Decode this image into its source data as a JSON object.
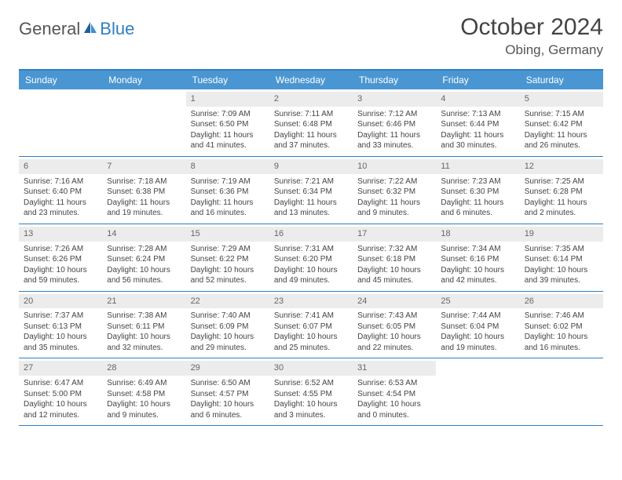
{
  "logo": {
    "text1": "General",
    "text2": "Blue"
  },
  "title": {
    "month": "October 2024",
    "location": "Obing, Germany"
  },
  "colors": {
    "header_bg": "#4a96d2",
    "border": "#2f7fc1",
    "daynum_bg": "#ececec",
    "text": "#444444",
    "logo_blue": "#2f7fc1"
  },
  "weekdays": [
    "Sunday",
    "Monday",
    "Tuesday",
    "Wednesday",
    "Thursday",
    "Friday",
    "Saturday"
  ],
  "weeks": [
    [
      null,
      null,
      {
        "n": "1",
        "sr": "7:09 AM",
        "ss": "6:50 PM",
        "dl": "11 hours and 41 minutes."
      },
      {
        "n": "2",
        "sr": "7:11 AM",
        "ss": "6:48 PM",
        "dl": "11 hours and 37 minutes."
      },
      {
        "n": "3",
        "sr": "7:12 AM",
        "ss": "6:46 PM",
        "dl": "11 hours and 33 minutes."
      },
      {
        "n": "4",
        "sr": "7:13 AM",
        "ss": "6:44 PM",
        "dl": "11 hours and 30 minutes."
      },
      {
        "n": "5",
        "sr": "7:15 AM",
        "ss": "6:42 PM",
        "dl": "11 hours and 26 minutes."
      }
    ],
    [
      {
        "n": "6",
        "sr": "7:16 AM",
        "ss": "6:40 PM",
        "dl": "11 hours and 23 minutes."
      },
      {
        "n": "7",
        "sr": "7:18 AM",
        "ss": "6:38 PM",
        "dl": "11 hours and 19 minutes."
      },
      {
        "n": "8",
        "sr": "7:19 AM",
        "ss": "6:36 PM",
        "dl": "11 hours and 16 minutes."
      },
      {
        "n": "9",
        "sr": "7:21 AM",
        "ss": "6:34 PM",
        "dl": "11 hours and 13 minutes."
      },
      {
        "n": "10",
        "sr": "7:22 AM",
        "ss": "6:32 PM",
        "dl": "11 hours and 9 minutes."
      },
      {
        "n": "11",
        "sr": "7:23 AM",
        "ss": "6:30 PM",
        "dl": "11 hours and 6 minutes."
      },
      {
        "n": "12",
        "sr": "7:25 AM",
        "ss": "6:28 PM",
        "dl": "11 hours and 2 minutes."
      }
    ],
    [
      {
        "n": "13",
        "sr": "7:26 AM",
        "ss": "6:26 PM",
        "dl": "10 hours and 59 minutes."
      },
      {
        "n": "14",
        "sr": "7:28 AM",
        "ss": "6:24 PM",
        "dl": "10 hours and 56 minutes."
      },
      {
        "n": "15",
        "sr": "7:29 AM",
        "ss": "6:22 PM",
        "dl": "10 hours and 52 minutes."
      },
      {
        "n": "16",
        "sr": "7:31 AM",
        "ss": "6:20 PM",
        "dl": "10 hours and 49 minutes."
      },
      {
        "n": "17",
        "sr": "7:32 AM",
        "ss": "6:18 PM",
        "dl": "10 hours and 45 minutes."
      },
      {
        "n": "18",
        "sr": "7:34 AM",
        "ss": "6:16 PM",
        "dl": "10 hours and 42 minutes."
      },
      {
        "n": "19",
        "sr": "7:35 AM",
        "ss": "6:14 PM",
        "dl": "10 hours and 39 minutes."
      }
    ],
    [
      {
        "n": "20",
        "sr": "7:37 AM",
        "ss": "6:13 PM",
        "dl": "10 hours and 35 minutes."
      },
      {
        "n": "21",
        "sr": "7:38 AM",
        "ss": "6:11 PM",
        "dl": "10 hours and 32 minutes."
      },
      {
        "n": "22",
        "sr": "7:40 AM",
        "ss": "6:09 PM",
        "dl": "10 hours and 29 minutes."
      },
      {
        "n": "23",
        "sr": "7:41 AM",
        "ss": "6:07 PM",
        "dl": "10 hours and 25 minutes."
      },
      {
        "n": "24",
        "sr": "7:43 AM",
        "ss": "6:05 PM",
        "dl": "10 hours and 22 minutes."
      },
      {
        "n": "25",
        "sr": "7:44 AM",
        "ss": "6:04 PM",
        "dl": "10 hours and 19 minutes."
      },
      {
        "n": "26",
        "sr": "7:46 AM",
        "ss": "6:02 PM",
        "dl": "10 hours and 16 minutes."
      }
    ],
    [
      {
        "n": "27",
        "sr": "6:47 AM",
        "ss": "5:00 PM",
        "dl": "10 hours and 12 minutes."
      },
      {
        "n": "28",
        "sr": "6:49 AM",
        "ss": "4:58 PM",
        "dl": "10 hours and 9 minutes."
      },
      {
        "n": "29",
        "sr": "6:50 AM",
        "ss": "4:57 PM",
        "dl": "10 hours and 6 minutes."
      },
      {
        "n": "30",
        "sr": "6:52 AM",
        "ss": "4:55 PM",
        "dl": "10 hours and 3 minutes."
      },
      {
        "n": "31",
        "sr": "6:53 AM",
        "ss": "4:54 PM",
        "dl": "10 hours and 0 minutes."
      },
      null,
      null
    ]
  ],
  "labels": {
    "sunrise": "Sunrise: ",
    "sunset": "Sunset: ",
    "daylight": "Daylight: "
  }
}
